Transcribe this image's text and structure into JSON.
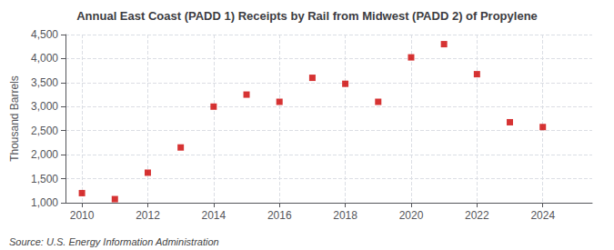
{
  "chart_data": {
    "type": "scatter",
    "title": "Annual East Coast (PADD 1) Receipts by Rail from Midwest (PADD 2) of Propylene",
    "ylabel": "Thousand Barrels",
    "annotations": [
      "Source: U.S. Energy Information Administration"
    ],
    "x": [
      2010,
      2011,
      2012,
      2013,
      2014,
      2015,
      2016,
      2017,
      2018,
      2019,
      2020,
      2021,
      2022,
      2023,
      2024
    ],
    "values": [
      1200,
      1075,
      1625,
      2150,
      3000,
      3250,
      3100,
      3600,
      3475,
      3100,
      4025,
      4300,
      3675,
      2675,
      2575
    ],
    "color": "#cc0000",
    "marker": "square",
    "xlim": [
      2009.5,
      2025.5
    ],
    "xticks": [
      2010,
      2012,
      2014,
      2016,
      2018,
      2020,
      2022,
      2024
    ],
    "ylim": [
      1000,
      4500
    ],
    "yticks": [
      {
        "value": 1000,
        "label": "1,000"
      },
      {
        "value": 1500,
        "label": "1,500"
      },
      {
        "value": 2000,
        "label": "2,000"
      },
      {
        "value": 2500,
        "label": "2,500"
      },
      {
        "value": 3000,
        "label": "3,000"
      },
      {
        "value": 3500,
        "label": "3,500"
      },
      {
        "value": 4000,
        "label": "4,000"
      },
      {
        "value": 4500,
        "label": "4,500"
      }
    ],
    "grid": true
  }
}
